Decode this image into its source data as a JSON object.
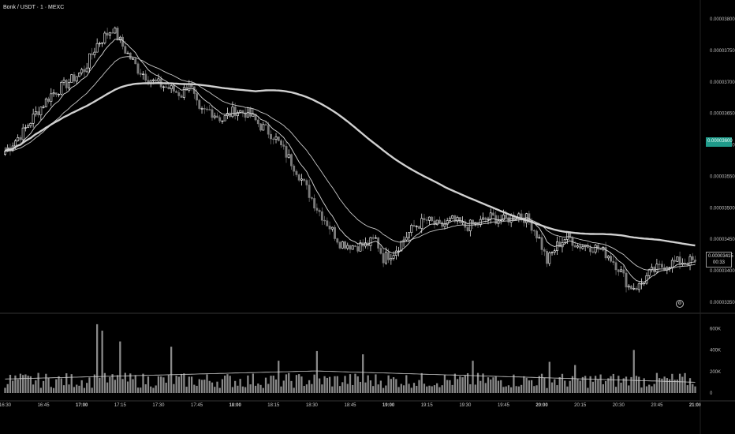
{
  "symbol": "Bonk / USDT · 1 · MEXC",
  "live_price": "0.00003415",
  "countdown": "00:33",
  "ref_price": "0.00003600",
  "settings_icon": "gear-icon",
  "colors": {
    "background": "#000000",
    "candle_up": "#ffffff",
    "candle_down": "#7a7a7a",
    "ma_fast": "#d9d9d9",
    "ma_slow": "#c8c8c8",
    "ma_long": "#d0d0d0",
    "volume": "#8a8a8a",
    "ref_tag": "#1f9a8a"
  },
  "chart_data": [
    {
      "type": "candlestick",
      "title": "Bonk / USDT · 1 · MEXC",
      "x_axis": {
        "ticks": [
          {
            "label": "16:30",
            "t": 0
          },
          {
            "label": "16:45",
            "t": 15
          },
          {
            "label": "17:00",
            "t": 30,
            "bold": true
          },
          {
            "label": "17:15",
            "t": 45
          },
          {
            "label": "17:30",
            "t": 60
          },
          {
            "label": "17:45",
            "t": 75
          },
          {
            "label": "18:00",
            "t": 90,
            "bold": true
          },
          {
            "label": "18:15",
            "t": 105
          },
          {
            "label": "18:30",
            "t": 120
          },
          {
            "label": "18:45",
            "t": 135
          },
          {
            "label": "19:00",
            "t": 150,
            "bold": true
          },
          {
            "label": "19:15",
            "t": 165
          },
          {
            "label": "19:30",
            "t": 180
          },
          {
            "label": "19:45",
            "t": 195
          },
          {
            "label": "20:00",
            "t": 210,
            "bold": true
          },
          {
            "label": "20:15",
            "t": 225
          },
          {
            "label": "20:30",
            "t": 240
          },
          {
            "label": "20:45",
            "t": 255
          },
          {
            "label": "21:00",
            "t": 270,
            "bold": true
          }
        ],
        "range": [
          -2,
          272
        ]
      },
      "y_axis": {
        "ticks": [
          "0.00003800",
          "0.00003750",
          "0.00003700",
          "0.00003650",
          "0.00003600",
          "0.00003550",
          "0.00003500",
          "0.00003450",
          "0.00003400",
          "0.00003350"
        ],
        "range": [
          3.335e-05,
          3.82e-05
        ]
      },
      "price_anchors": [
        [
          0,
          3.59e-05
        ],
        [
          7,
          3.62e-05
        ],
        [
          12,
          3.65e-05
        ],
        [
          18,
          3.68e-05
        ],
        [
          25,
          3.7e-05
        ],
        [
          31,
          3.72e-05
        ],
        [
          36,
          3.76e-05
        ],
        [
          42,
          3.785e-05
        ],
        [
          47,
          3.75e-05
        ],
        [
          52,
          3.72e-05
        ],
        [
          58,
          3.7e-05
        ],
        [
          64,
          3.69e-05
        ],
        [
          69,
          3.68e-05
        ],
        [
          72,
          3.7e-05
        ],
        [
          76,
          3.65e-05
        ],
        [
          80,
          3.655e-05
        ],
        [
          85,
          3.64e-05
        ],
        [
          90,
          3.655e-05
        ],
        [
          95,
          3.65e-05
        ],
        [
          100,
          3.63e-05
        ],
        [
          105,
          3.615e-05
        ],
        [
          110,
          3.585e-05
        ],
        [
          114,
          3.56e-05
        ],
        [
          118,
          3.53e-05
        ],
        [
          122,
          3.5e-05
        ],
        [
          127,
          3.47e-05
        ],
        [
          131,
          3.445e-05
        ],
        [
          136,
          3.44e-05
        ],
        [
          141,
          3.44e-05
        ],
        [
          145,
          3.45e-05
        ],
        [
          148,
          3.42e-05
        ],
        [
          152,
          3.43e-05
        ],
        [
          156,
          3.45e-05
        ],
        [
          160,
          3.47e-05
        ],
        [
          165,
          3.48e-05
        ],
        [
          170,
          3.47e-05
        ],
        [
          175,
          3.48e-05
        ],
        [
          180,
          3.47e-05
        ],
        [
          185,
          3.475e-05
        ],
        [
          190,
          3.485e-05
        ],
        [
          195,
          3.48e-05
        ],
        [
          201,
          3.49e-05
        ],
        [
          205,
          3.48e-05
        ],
        [
          209,
          3.45e-05
        ],
        [
          212,
          3.415e-05
        ],
        [
          216,
          3.44e-05
        ],
        [
          220,
          3.455e-05
        ],
        [
          224,
          3.44e-05
        ],
        [
          228,
          3.44e-05
        ],
        [
          232,
          3.435e-05
        ],
        [
          236,
          3.425e-05
        ],
        [
          240,
          3.405e-05
        ],
        [
          244,
          3.375e-05
        ],
        [
          248,
          3.375e-05
        ],
        [
          252,
          3.395e-05
        ],
        [
          256,
          3.405e-05
        ],
        [
          260,
          3.412e-05
        ],
        [
          265,
          3.415e-05
        ],
        [
          270,
          3.415e-05
        ]
      ],
      "moving_averages": [
        {
          "period": 9,
          "style": "thin"
        },
        {
          "period": 25,
          "style": "thin"
        },
        {
          "period": 99,
          "style": "thick"
        }
      ],
      "last_price": 3.415e-05,
      "reference_price": 3.6e-05
    },
    {
      "type": "bar",
      "title": "",
      "y_axis": {
        "ticks": [
          "600K",
          "400K",
          "200K",
          "0"
        ],
        "range": [
          0,
          720000
        ]
      },
      "baseline_volume": 130000,
      "spikes": [
        {
          "t": 36,
          "value": 640000
        },
        {
          "t": 38,
          "value": 580000
        },
        {
          "t": 45,
          "value": 480000
        },
        {
          "t": 65,
          "value": 430000
        },
        {
          "t": 107,
          "value": 300000
        },
        {
          "t": 122,
          "value": 390000
        },
        {
          "t": 140,
          "value": 360000
        },
        {
          "t": 183,
          "value": 300000
        },
        {
          "t": 213,
          "value": 290000
        },
        {
          "t": 246,
          "value": 400000
        },
        {
          "t": 223,
          "value": 260000
        }
      ],
      "ma_volume": {
        "start": 130000,
        "peak": 205000,
        "end": 100000
      }
    }
  ]
}
